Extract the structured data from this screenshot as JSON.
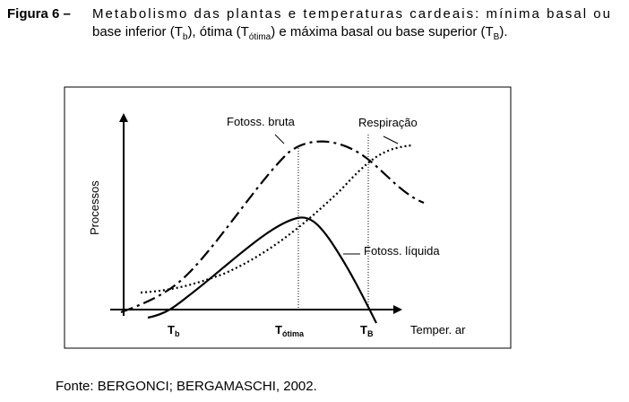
{
  "caption": {
    "label": "Figura 6 –",
    "line1": "Metabolismo das plantas e temperaturas cardeais: mínima basal ou",
    "line2_parts": [
      "base inferior (T",
      "b",
      "), ótima (T",
      "ótima",
      ") e máxima basal ou base superior (T",
      "B",
      ")."
    ]
  },
  "figure": {
    "y_axis_label": "Processos",
    "x_axis_label": "Temper. ar",
    "curves": [
      "Fotoss. bruta",
      "Respiração",
      "Fotoss. líquida"
    ],
    "points": [
      {
        "symbol": "T",
        "subscript": "b"
      },
      {
        "symbol": "T",
        "subscript": "ótima"
      },
      {
        "symbol": "T",
        "subscript": "B"
      }
    ]
  },
  "source": "Fonte: BERGONCI; BERGAMASCHI, 2002."
}
